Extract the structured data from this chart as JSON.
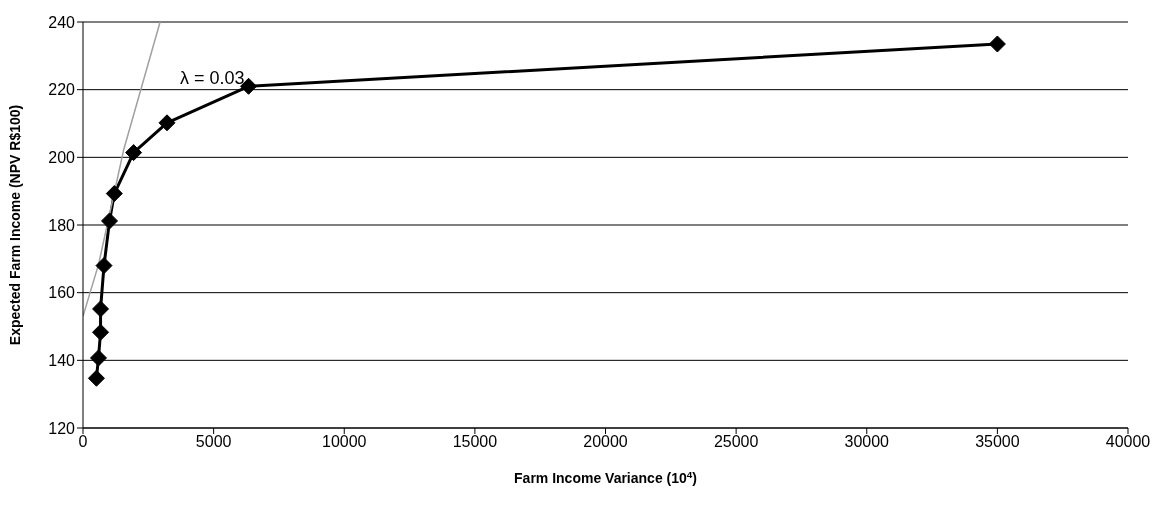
{
  "chart_data": {
    "type": "line",
    "xlabel": "Farm Income Variance (10$^{4}$)",
    "ylabel": "Expected Farm Income (NPV R$100)",
    "series": [
      {
        "color": "#000000",
        "marker": "diamond",
        "x": [
          514,
          593,
          672,
          672,
          804,
          1015,
          1199,
          1937,
          3215,
          6337,
          35000
        ],
        "values": [
          134.7,
          140.7,
          148.3,
          155.2,
          168,
          181.2,
          189.3,
          201.4,
          210.2,
          221,
          233.5
        ]
      },
      {
        "color": "#a0a0a0",
        "marker": "none",
        "x": [
          0,
          600,
          1550,
          2950
        ],
        "values": [
          153,
          168.5,
          202,
          240
        ]
      }
    ],
    "annotations": [
      "λ = 0.03"
    ],
    "xlim": [
      0,
      40000
    ],
    "xticks": [
      0,
      5000,
      10000,
      15000,
      20000,
      25000,
      30000,
      35000,
      40000
    ],
    "ylim": [
      120,
      240
    ],
    "yticks": [
      120,
      140,
      160,
      180,
      200,
      220,
      240
    ],
    "grid": "y"
  }
}
